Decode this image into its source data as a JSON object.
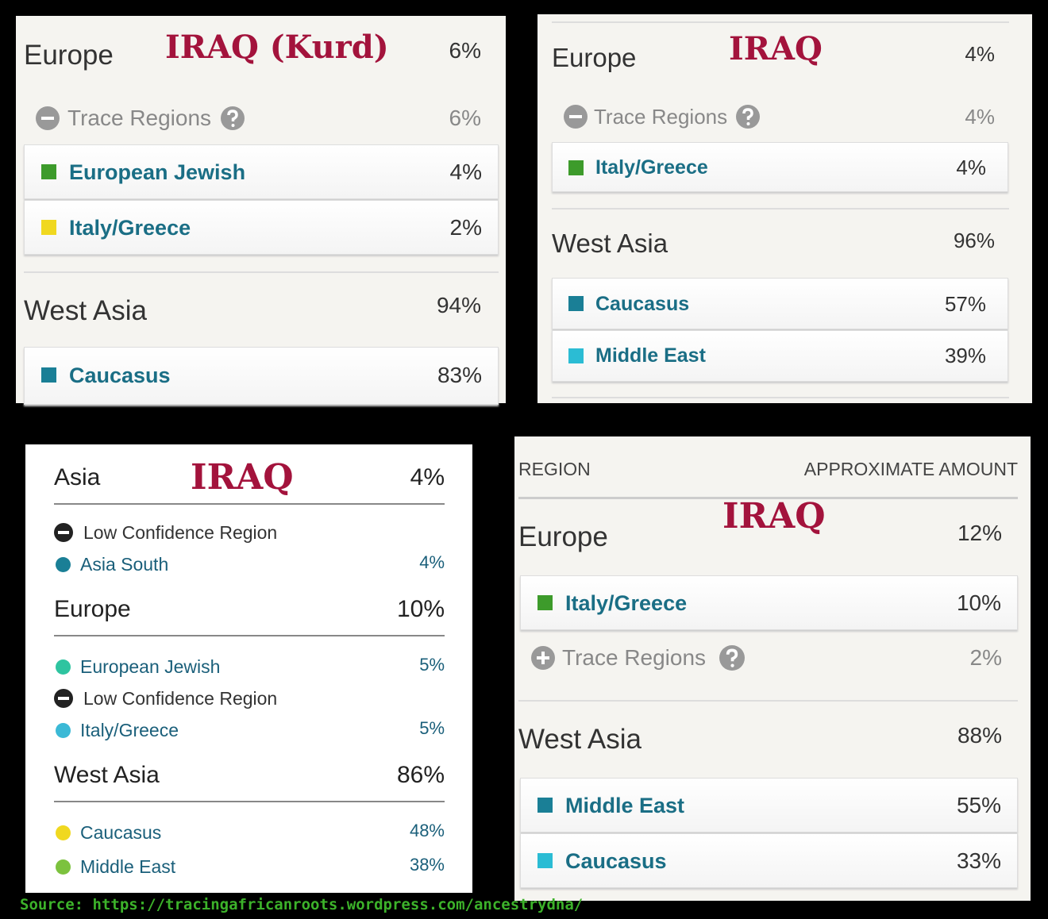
{
  "panels": [
    {
      "label": "IRAQ (Kurd)",
      "sections": [
        {
          "name": "Europe",
          "amount": "6%",
          "trace": {
            "label": "Trace Regions",
            "amount": "6%"
          },
          "regions": [
            {
              "name": "European Jewish",
              "amount": "4%",
              "color": "#3d9b2b"
            },
            {
              "name": "Italy/Greece",
              "amount": "2%",
              "color": "#f0d820"
            }
          ]
        },
        {
          "name": "West Asia",
          "amount": "94%",
          "regions": [
            {
              "name": "Caucasus",
              "amount": "83%",
              "color": "#1a7f96"
            }
          ]
        }
      ]
    },
    {
      "label": "IRAQ",
      "sections": [
        {
          "name": "Europe",
          "amount": "4%",
          "trace": {
            "label": "Trace Regions",
            "amount": "4%"
          },
          "regions": [
            {
              "name": "Italy/Greece",
              "amount": "4%",
              "color": "#3d9b2b"
            }
          ]
        },
        {
          "name": "West Asia",
          "amount": "96%",
          "regions": [
            {
              "name": "Caucasus",
              "amount": "57%",
              "color": "#1a7f96"
            },
            {
              "name": "Middle East",
              "amount": "39%",
              "color": "#2bbcd4"
            }
          ]
        }
      ]
    },
    {
      "label": "IRAQ",
      "sections": [
        {
          "name": "Asia",
          "amount": "4%",
          "low_confidence": "Low Confidence Region",
          "regions": [
            {
              "name": "Asia South",
              "amount": "4%",
              "color": "#1a7f96"
            }
          ]
        },
        {
          "name": "Europe",
          "amount": "10%",
          "low_confidence": "Low Confidence Region",
          "regions": [
            {
              "name": "European Jewish",
              "amount": "5%",
              "color": "#2ec4a0"
            },
            {
              "name": "Italy/Greece",
              "amount": "5%",
              "color": "#3bb9d6"
            }
          ]
        },
        {
          "name": "West Asia",
          "amount": "86%",
          "regions": [
            {
              "name": "Caucasus",
              "amount": "48%",
              "color": "#f0d820"
            },
            {
              "name": "Middle East",
              "amount": "38%",
              "color": "#7cc23e"
            }
          ]
        }
      ]
    },
    {
      "label": "IRAQ",
      "header": {
        "region": "REGION",
        "amount": "APPROXIMATE AMOUNT"
      },
      "sections": [
        {
          "name": "Europe",
          "amount": "12%",
          "trace": {
            "label": "Trace Regions",
            "amount": "2%"
          },
          "regions": [
            {
              "name": "Italy/Greece",
              "amount": "10%",
              "color": "#3d9b2b"
            }
          ]
        },
        {
          "name": "West Asia",
          "amount": "88%",
          "regions": [
            {
              "name": "Middle East",
              "amount": "55%",
              "color": "#1a7f96"
            },
            {
              "name": "Caucasus",
              "amount": "33%",
              "color": "#2bbcd4"
            }
          ]
        }
      ]
    }
  ],
  "source": "Source: https://tracingafricanroots.wordpress.com/ancestrydna/"
}
